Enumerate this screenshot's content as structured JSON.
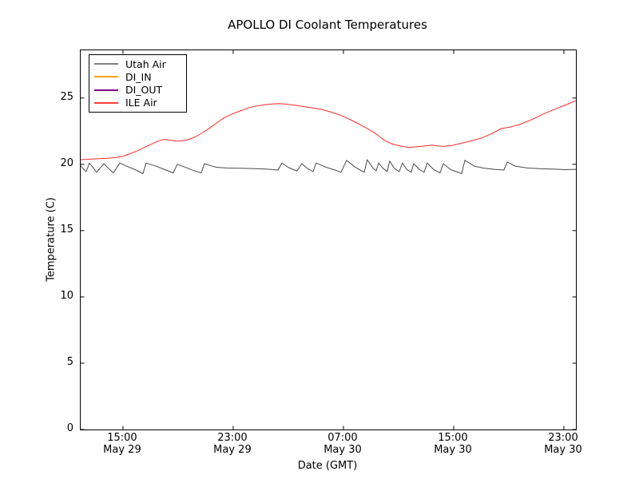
{
  "chart_data": {
    "type": "line",
    "title": "APOLLO DI Coolant Temperatures",
    "xlabel": "Date (GMT)",
    "ylabel": "Temperature (C)",
    "grid": false,
    "background_color": "#ffffff",
    "axis_color": "#000000",
    "ylim": [
      0,
      28.6
    ],
    "y_axis": {
      "ticks": [
        0,
        5,
        10,
        15,
        20,
        25
      ]
    },
    "x_axis": {
      "unit": "hours since May 29 00:00 GMT",
      "range": [
        11.93,
        47.87
      ],
      "ticks": [
        {
          "hour": 15,
          "time": "15:00",
          "date": "May 29"
        },
        {
          "hour": 23,
          "time": "23:00",
          "date": "May 29"
        },
        {
          "hour": 31,
          "time": "07:00",
          "date": "May 30"
        },
        {
          "hour": 39,
          "time": "15:00",
          "date": "May 30"
        },
        {
          "hour": 47,
          "time": "23:00",
          "date": "May 30"
        }
      ]
    },
    "legend": {
      "position": "upper left",
      "entries": [
        {
          "label": "Utah Air",
          "color": "#808080"
        },
        {
          "label": "DI_IN",
          "color": "#ffa500"
        },
        {
          "label": "DI_OUT",
          "color": "#800080"
        },
        {
          "label": "ILE Air",
          "color": "#ff4040"
        }
      ]
    },
    "series": [
      {
        "name": "Utah Air",
        "color": "#4a4a4a",
        "points": [
          [
            11.93,
            19.88
          ],
          [
            12.22,
            19.55
          ],
          [
            12.33,
            19.45
          ],
          [
            12.56,
            20.1
          ],
          [
            12.83,
            19.75
          ],
          [
            13.09,
            19.4
          ],
          [
            13.61,
            20.05
          ],
          [
            13.95,
            19.7
          ],
          [
            14.3,
            19.35
          ],
          [
            14.77,
            20.1
          ],
          [
            15.28,
            19.85
          ],
          [
            15.89,
            19.6
          ],
          [
            16.45,
            19.3
          ],
          [
            16.68,
            20.1
          ],
          [
            17.43,
            19.85
          ],
          [
            18.04,
            19.6
          ],
          [
            18.65,
            19.35
          ],
          [
            18.94,
            20.0
          ],
          [
            19.47,
            19.8
          ],
          [
            20.08,
            19.55
          ],
          [
            20.68,
            19.35
          ],
          [
            20.91,
            20.05
          ],
          [
            21.51,
            19.85
          ],
          [
            21.78,
            19.78
          ],
          [
            22.54,
            19.72
          ],
          [
            23.52,
            19.7
          ],
          [
            24.37,
            19.68
          ],
          [
            25.25,
            19.65
          ],
          [
            25.91,
            19.6
          ],
          [
            26.24,
            19.56
          ],
          [
            26.53,
            20.1
          ],
          [
            27.03,
            19.75
          ],
          [
            27.63,
            19.5
          ],
          [
            27.98,
            20.05
          ],
          [
            28.36,
            19.7
          ],
          [
            28.79,
            19.45
          ],
          [
            29.02,
            20.1
          ],
          [
            29.69,
            19.8
          ],
          [
            30.3,
            19.6
          ],
          [
            30.82,
            19.4
          ],
          [
            31.23,
            20.3
          ],
          [
            31.83,
            19.8
          ],
          [
            32.51,
            19.4
          ],
          [
            32.73,
            20.35
          ],
          [
            33.16,
            19.7
          ],
          [
            33.37,
            19.5
          ],
          [
            33.55,
            20.1
          ],
          [
            33.87,
            19.7
          ],
          [
            34.18,
            19.45
          ],
          [
            34.35,
            20.25
          ],
          [
            34.69,
            19.7
          ],
          [
            35.05,
            19.45
          ],
          [
            35.28,
            20.1
          ],
          [
            35.61,
            19.6
          ],
          [
            35.92,
            19.4
          ],
          [
            36.09,
            20.05
          ],
          [
            36.53,
            19.6
          ],
          [
            36.85,
            19.4
          ],
          [
            37.08,
            20.1
          ],
          [
            37.55,
            19.6
          ],
          [
            38.01,
            19.35
          ],
          [
            38.25,
            20.05
          ],
          [
            38.78,
            19.6
          ],
          [
            39.58,
            19.3
          ],
          [
            39.81,
            20.3
          ],
          [
            40.52,
            19.85
          ],
          [
            41.23,
            19.7
          ],
          [
            41.95,
            19.62
          ],
          [
            42.65,
            19.57
          ],
          [
            42.89,
            20.18
          ],
          [
            43.48,
            19.85
          ],
          [
            44.4,
            19.72
          ],
          [
            45.22,
            19.67
          ],
          [
            46.14,
            19.64
          ],
          [
            47.06,
            19.6
          ],
          [
            47.87,
            19.62
          ]
        ]
      },
      {
        "name": "DI_IN",
        "color": "#ffa500",
        "points": []
      },
      {
        "name": "DI_OUT",
        "color": "#800080",
        "points": []
      },
      {
        "name": "ILE Air",
        "color": "#ff2a2a",
        "points": [
          [
            11.91,
            20.35
          ],
          [
            12.52,
            20.38
          ],
          [
            13.09,
            20.42
          ],
          [
            13.75,
            20.45
          ],
          [
            14.42,
            20.5
          ],
          [
            14.98,
            20.6
          ],
          [
            15.38,
            20.75
          ],
          [
            16.0,
            21.0
          ],
          [
            16.61,
            21.3
          ],
          [
            17.12,
            21.55
          ],
          [
            17.53,
            21.75
          ],
          [
            17.99,
            21.88
          ],
          [
            18.45,
            21.82
          ],
          [
            18.86,
            21.75
          ],
          [
            19.21,
            21.77
          ],
          [
            19.57,
            21.82
          ],
          [
            19.98,
            21.95
          ],
          [
            20.29,
            22.1
          ],
          [
            20.8,
            22.4
          ],
          [
            21.31,
            22.75
          ],
          [
            21.82,
            23.15
          ],
          [
            22.33,
            23.5
          ],
          [
            22.94,
            23.8
          ],
          [
            23.56,
            24.05
          ],
          [
            24.07,
            24.25
          ],
          [
            24.68,
            24.4
          ],
          [
            25.29,
            24.5
          ],
          [
            25.81,
            24.55
          ],
          [
            26.32,
            24.58
          ],
          [
            26.72,
            24.55
          ],
          [
            27.54,
            24.45
          ],
          [
            28.15,
            24.35
          ],
          [
            28.77,
            24.25
          ],
          [
            29.38,
            24.15
          ],
          [
            29.89,
            24.0
          ],
          [
            30.81,
            23.7
          ],
          [
            31.63,
            23.3
          ],
          [
            32.55,
            22.8
          ],
          [
            33.36,
            22.3
          ],
          [
            33.98,
            21.8
          ],
          [
            34.49,
            21.55
          ],
          [
            35.1,
            21.38
          ],
          [
            35.71,
            21.28
          ],
          [
            36.02,
            21.3
          ],
          [
            36.63,
            21.35
          ],
          [
            37.45,
            21.45
          ],
          [
            37.86,
            21.38
          ],
          [
            38.27,
            21.35
          ],
          [
            38.88,
            21.42
          ],
          [
            39.19,
            21.5
          ],
          [
            40.01,
            21.7
          ],
          [
            40.93,
            21.95
          ],
          [
            41.74,
            22.3
          ],
          [
            42.46,
            22.7
          ],
          [
            43.07,
            22.8
          ],
          [
            43.79,
            23.0
          ],
          [
            44.71,
            23.4
          ],
          [
            45.52,
            23.8
          ],
          [
            46.44,
            24.2
          ],
          [
            47.16,
            24.5
          ],
          [
            47.87,
            24.8
          ]
        ]
      }
    ]
  }
}
